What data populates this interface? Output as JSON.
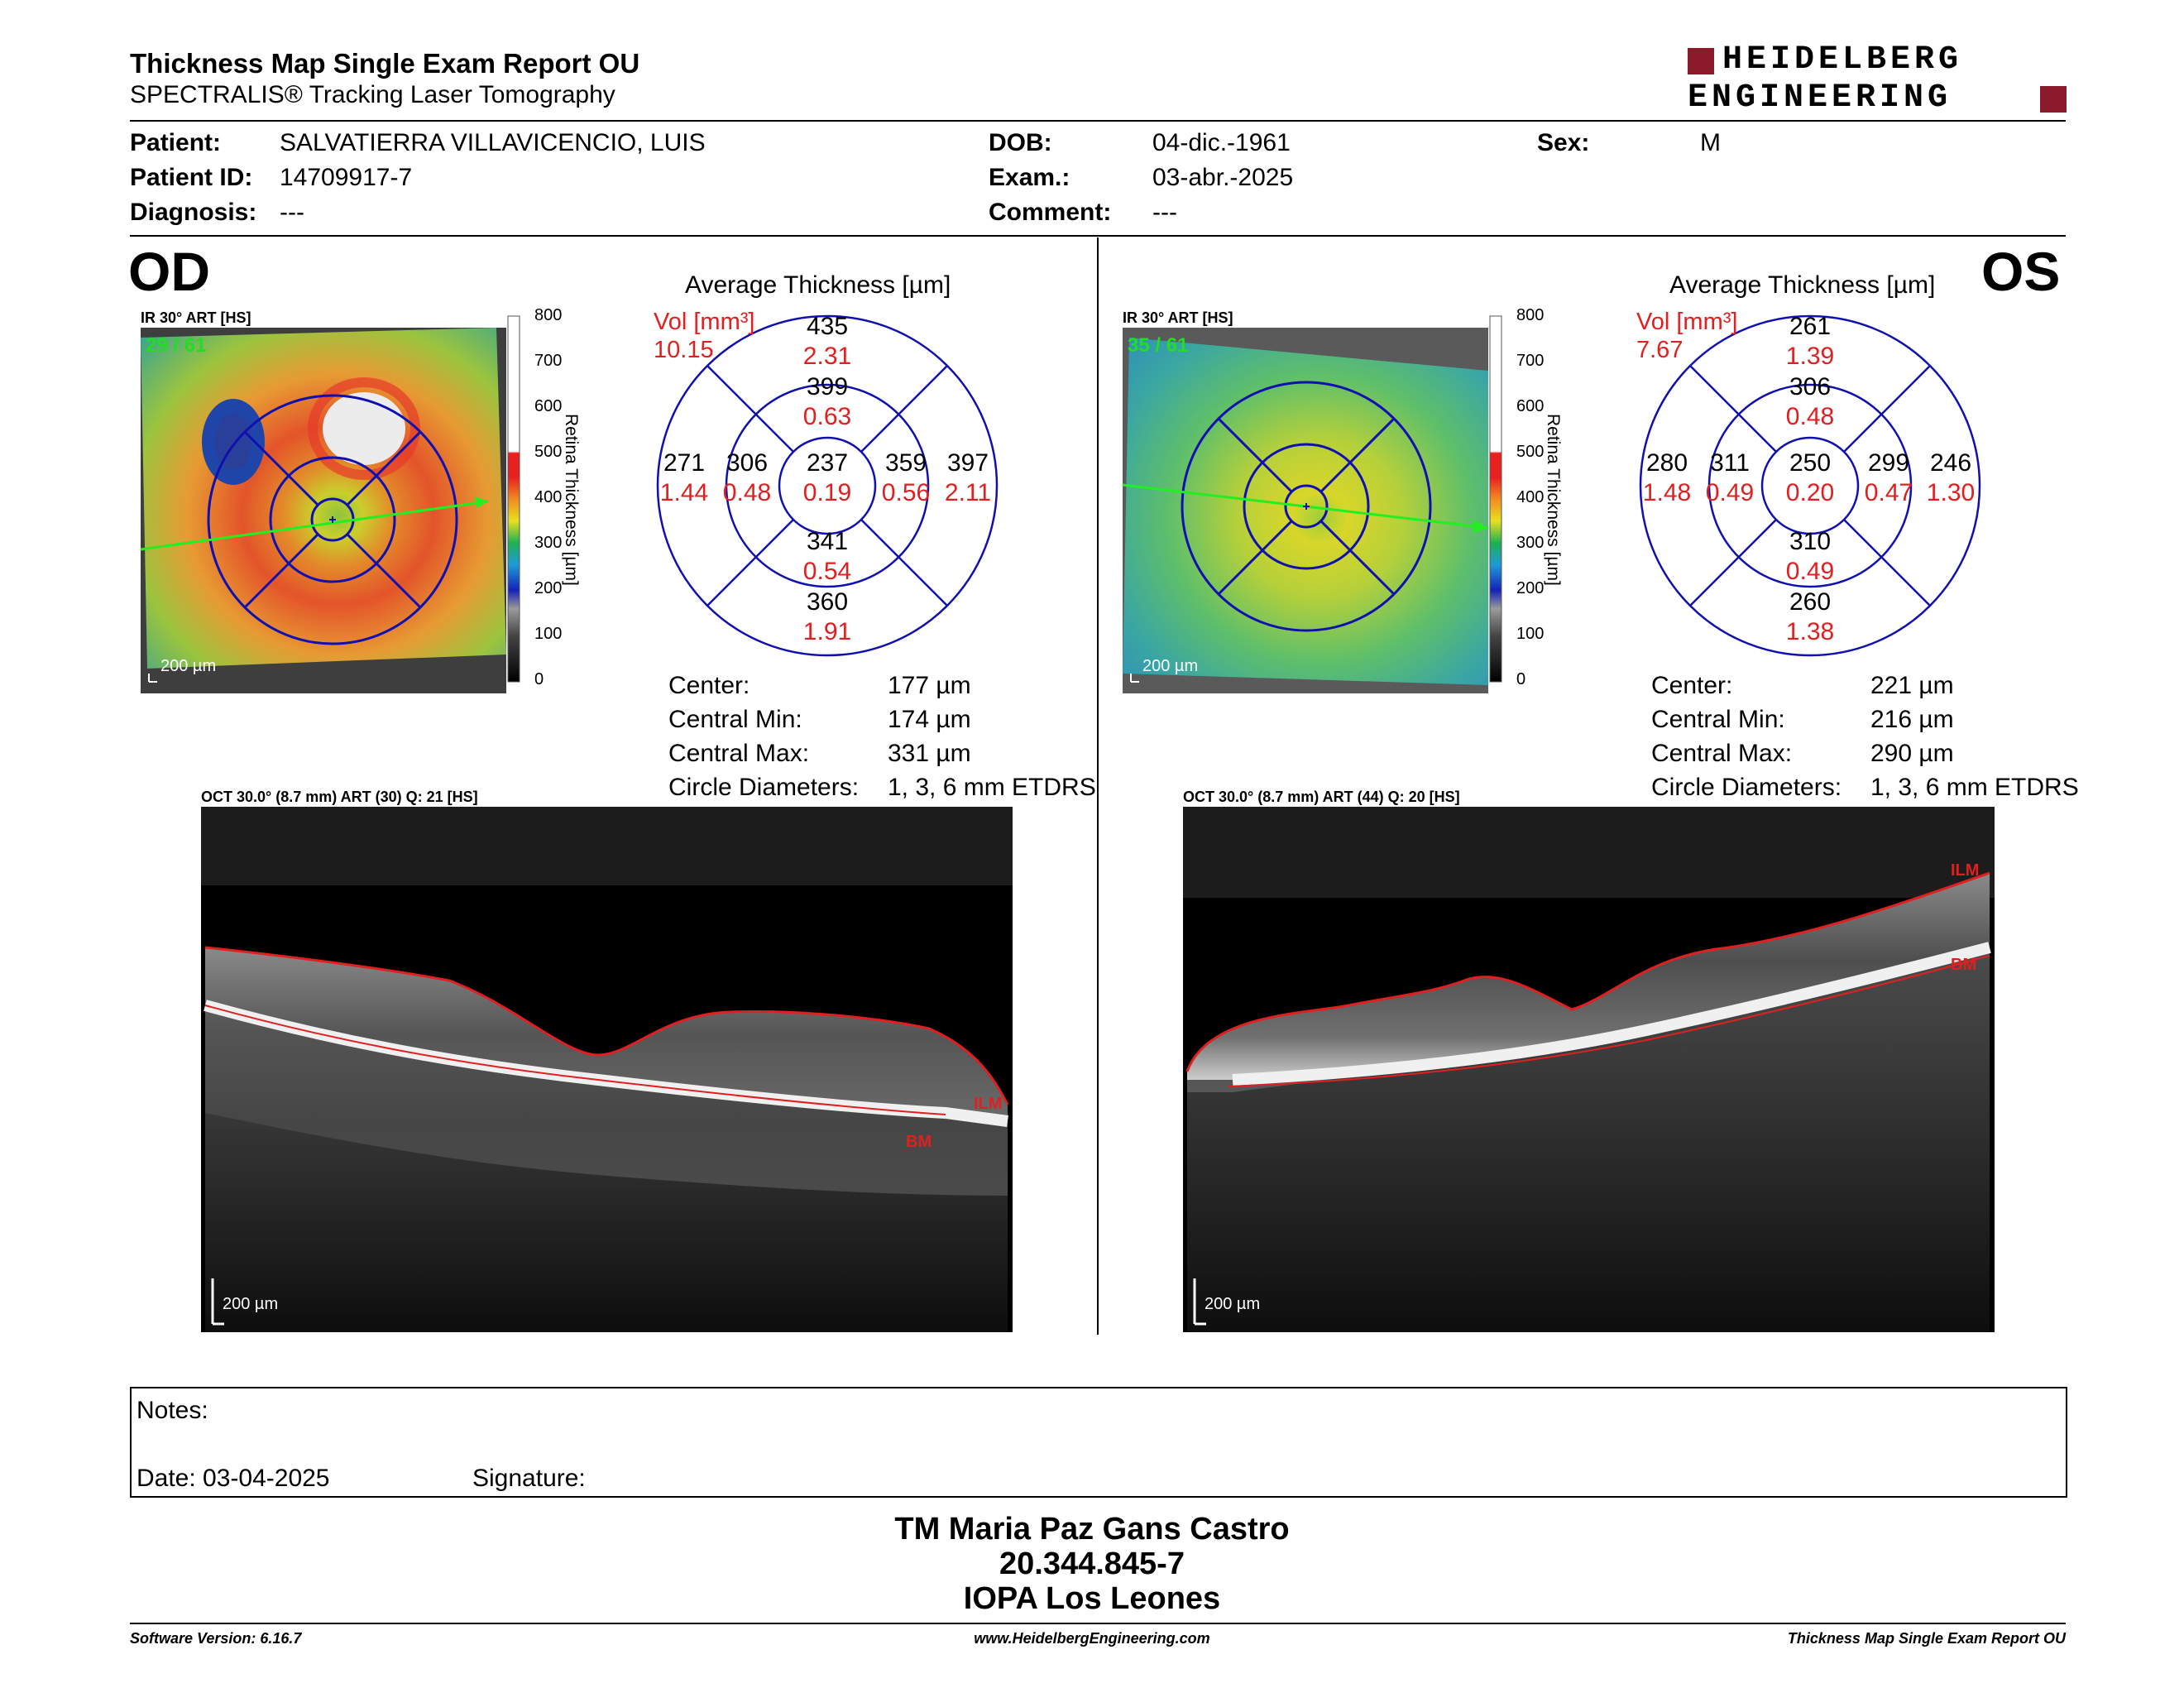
{
  "report": {
    "title": "Thickness Map Single Exam Report OU",
    "subtitle": "SPECTRALIS® Tracking Laser Tomography",
    "brand_line1": "HEIDELBERG",
    "brand_line2": "ENGINEERING",
    "brand_color": "#8b1a2b"
  },
  "patient": {
    "patient_label": "Patient:",
    "patient_value": "SALVATIERRA VILLAVICENCIO, LUIS",
    "id_label": "Patient ID:",
    "id_value": "14709917-7",
    "diagnosis_label": "Diagnosis:",
    "diagnosis_value": "---",
    "dob_label": "DOB:",
    "dob_value": "04-dic.-1961",
    "exam_label": "Exam.:",
    "exam_value": "03-abr.-2025",
    "comment_label": "Comment:",
    "comment_value": "---",
    "sex_label": "Sex:",
    "sex_value": "M"
  },
  "scale": {
    "ticks": [
      "800",
      "700",
      "600",
      "500",
      "400",
      "300",
      "200",
      "100",
      "0"
    ],
    "label": "Retina Thickness [µm]"
  },
  "od": {
    "eye": "OD",
    "ir_caption": "IR 30° ART [HS]",
    "frame": "29 / 61",
    "ir_scale": "200 µm",
    "avg_title": "Average Thickness [µm]",
    "vol_label": "Vol [mm³]",
    "vol_value": "10.15",
    "sectors": {
      "outer_sup": [
        "435",
        "2.31"
      ],
      "inner_sup": [
        "399",
        "0.63"
      ],
      "outer_temp": [
        "271",
        "1.44"
      ],
      "inner_temp": [
        "306",
        "0.48"
      ],
      "center": [
        "237",
        "0.19"
      ],
      "inner_nasal": [
        "359",
        "0.56"
      ],
      "outer_nasal": [
        "397",
        "2.11"
      ],
      "inner_inf": [
        "341",
        "0.54"
      ],
      "outer_inf": [
        "360",
        "1.91"
      ]
    },
    "stats": {
      "center_label": "Center:",
      "center_value": "177 µm",
      "min_label": "Central Min:",
      "min_value": "174 µm",
      "max_label": "Central Max:",
      "max_value": "331 µm",
      "diam_label": "Circle Diameters:",
      "diam_value": "1, 3, 6 mm ETDRS"
    },
    "oct_caption": "OCT 30.0° (8.7 mm) ART (30) Q: 21 [HS]",
    "oct_scale": "200 µm",
    "ilm": "ILM",
    "bm": "BM"
  },
  "os": {
    "eye": "OS",
    "ir_caption": "IR 30° ART [HS]",
    "frame": "35 / 61",
    "ir_scale": "200 µm",
    "avg_title": "Average Thickness [µm]",
    "vol_label": "Vol [mm³]",
    "vol_value": "7.67",
    "sectors": {
      "outer_sup": [
        "261",
        "1.39"
      ],
      "inner_sup": [
        "306",
        "0.48"
      ],
      "outer_temp": [
        "280",
        "1.48"
      ],
      "inner_temp": [
        "311",
        "0.49"
      ],
      "center": [
        "250",
        "0.20"
      ],
      "inner_nasal": [
        "299",
        "0.47"
      ],
      "outer_nasal": [
        "246",
        "1.30"
      ],
      "inner_inf": [
        "310",
        "0.49"
      ],
      "outer_inf": [
        "260",
        "1.38"
      ]
    },
    "stats": {
      "center_label": "Center:",
      "center_value": "221 µm",
      "min_label": "Central Min:",
      "min_value": "216 µm",
      "max_label": "Central Max:",
      "max_value": "290 µm",
      "diam_label": "Circle Diameters:",
      "diam_value": "1, 3, 6 mm ETDRS"
    },
    "oct_caption": "OCT 30.0° (8.7 mm) ART (44) Q: 20 [HS]",
    "oct_scale": "200 µm",
    "ilm": "ILM",
    "bm": "BM"
  },
  "notes": {
    "notes_label": "Notes:",
    "date_label": "Date: 03-04-2025",
    "signature_label": "Signature:"
  },
  "signature_block": {
    "name": "TM Maria Paz Gans Castro",
    "id": "20.344.845-7",
    "org": "IOPA Los Leones"
  },
  "footer": {
    "software": "Software Version: 6.16.7",
    "url": "www.HeidelbergEngineering.com",
    "report": "Thickness Map Single Exam Report OU"
  }
}
